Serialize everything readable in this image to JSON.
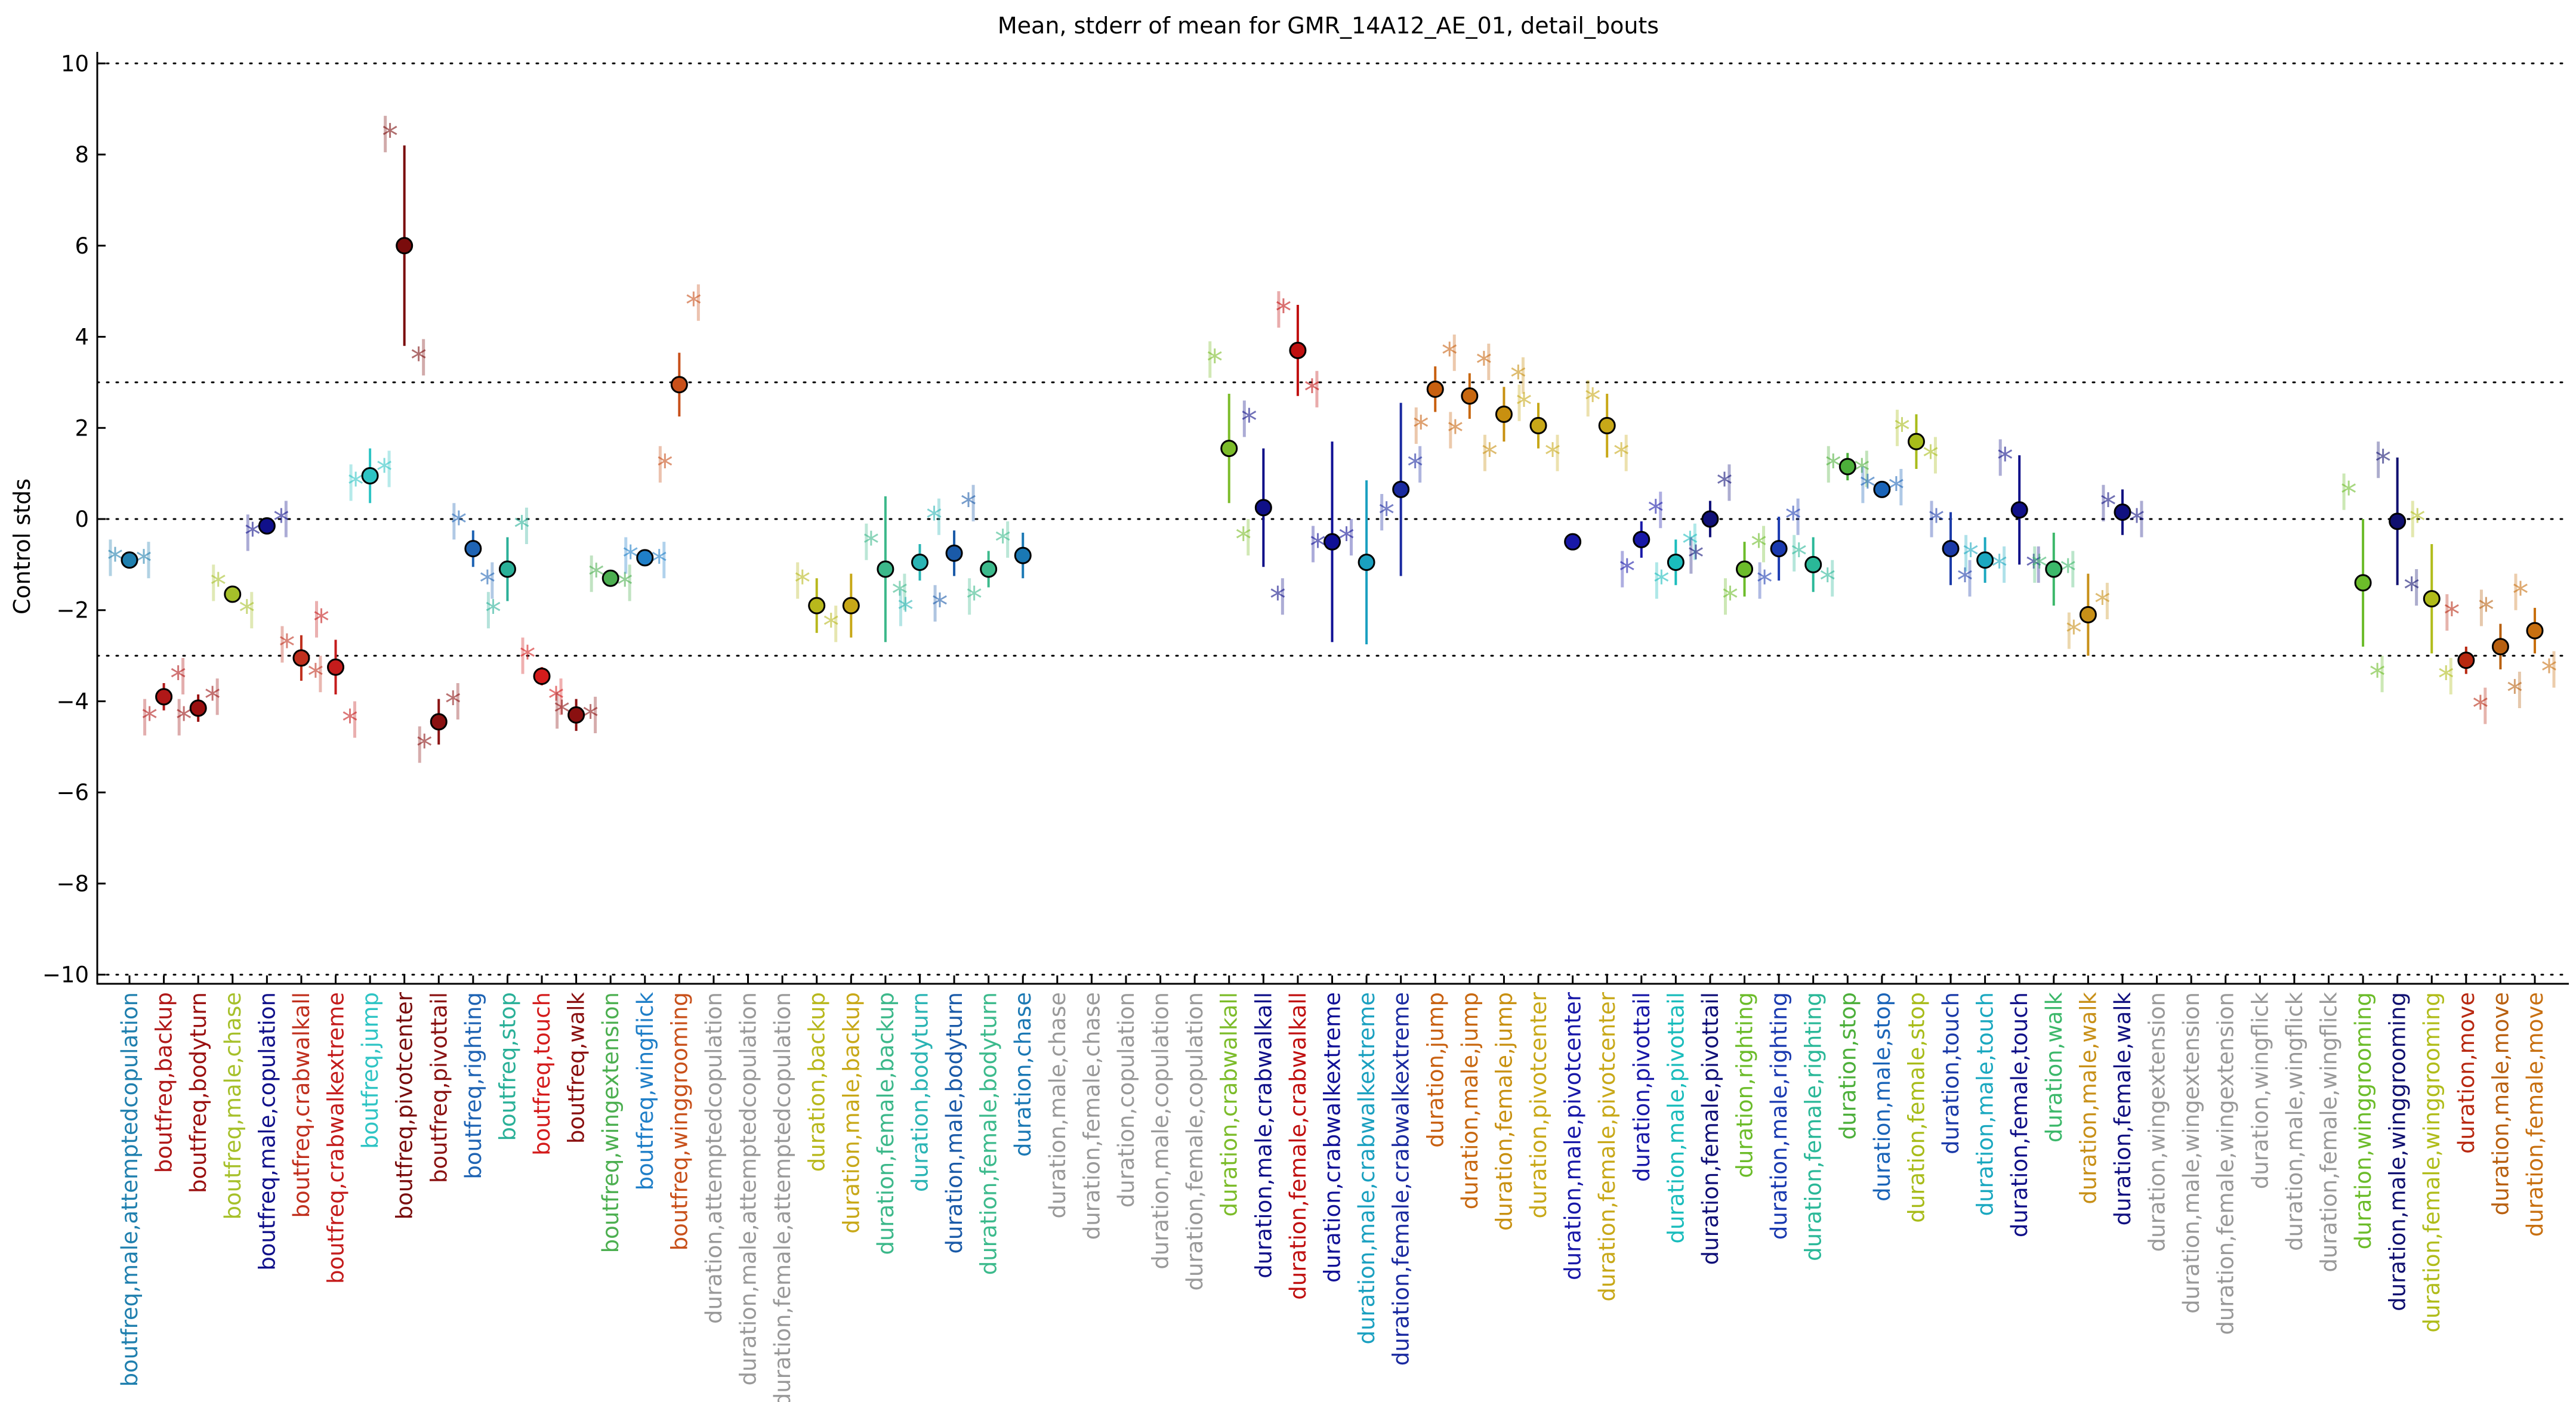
{
  "chart_data": {
    "type": "scatter",
    "title": "Mean, stderr of mean for GMR_14A12_AE_01, detail_bouts",
    "xlabel": "",
    "ylabel": "Control stds",
    "ylim": [
      -10.2,
      10.2
    ],
    "yticks": [
      -10,
      -8,
      -6,
      -4,
      -2,
      0,
      2,
      4,
      6,
      8,
      10
    ],
    "reference_lines": [
      -3,
      0,
      3,
      10,
      -10
    ],
    "grid": false,
    "legend": "none",
    "categories": [
      {
        "label": "boutfreq,male,attemptedcopulation",
        "color": "#1f7fae",
        "mean": -0.9,
        "err": 0.1,
        "reps": [
          -0.85,
          -0.9
        ]
      },
      {
        "label": "boutfreq,backup",
        "color": "#b01818",
        "mean": -3.9,
        "err": 0.3,
        "reps": [
          -4.35,
          -3.45
        ]
      },
      {
        "label": "boutfreq,bodyturn",
        "color": "#9a1010",
        "mean": -4.15,
        "err": 0.3,
        "reps": [
          -4.35,
          -3.9
        ]
      },
      {
        "label": "boutfreq,male,chase",
        "color": "#a6c02a",
        "mean": -1.65,
        "err": 0.15,
        "reps": [
          -1.4,
          -2.0
        ]
      },
      {
        "label": "boutfreq,male,copulation",
        "color": "#10108a",
        "mean": -0.15,
        "err": 0.15,
        "reps": [
          -0.3,
          0.0
        ]
      },
      {
        "label": "boutfreq,crabwalkall",
        "color": "#c0301e",
        "mean": -3.05,
        "err": 0.5,
        "reps": [
          -2.75,
          -3.4
        ]
      },
      {
        "label": "boutfreq,crabwalkextreme",
        "color": "#c41c1c",
        "mean": -3.25,
        "err": 0.6,
        "reps": [
          -2.2,
          -4.4
        ]
      },
      {
        "label": "boutfreq,jump",
        "color": "#2ec4c4",
        "mean": 0.95,
        "err": 0.6,
        "reps": [
          0.8,
          1.1
        ]
      },
      {
        "label": "boutfreq,pivotcenter",
        "color": "#7a0c0c",
        "mean": 6.0,
        "err": 2.2,
        "reps": [
          8.45,
          3.55
        ]
      },
      {
        "label": "boutfreq,pivottail",
        "color": "#8a1212",
        "mean": -4.45,
        "err": 0.5,
        "reps": [
          -4.95,
          -4.0
        ]
      },
      {
        "label": "boutfreq,righting",
        "color": "#1f64b4",
        "mean": -0.65,
        "err": 0.4,
        "reps": [
          -0.05,
          -1.35
        ]
      },
      {
        "label": "boutfreq,stop",
        "color": "#2ab098",
        "mean": -1.1,
        "err": 0.7,
        "reps": [
          -2.0,
          -0.15
        ]
      },
      {
        "label": "boutfreq,touch",
        "color": "#d41c1c",
        "mean": -3.45,
        "err": 0.2,
        "reps": [
          -3.0,
          -3.9
        ]
      },
      {
        "label": "boutfreq,walk",
        "color": "#8a1010",
        "mean": -4.3,
        "err": 0.35,
        "reps": [
          -4.2,
          -4.3
        ]
      },
      {
        "label": "boutfreq,wingextension",
        "color": "#4caf50",
        "mean": -1.3,
        "err": 0.1,
        "reps": [
          -1.2,
          -1.4
        ]
      },
      {
        "label": "boutfreq,wingflick",
        "color": "#1f7fc8",
        "mean": -0.85,
        "err": 0.1,
        "reps": [
          -0.8,
          -0.9
        ]
      },
      {
        "label": "boutfreq,winggrooming",
        "color": "#c8501a",
        "mean": 2.95,
        "err": 0.7,
        "reps": [
          1.2,
          4.75
        ]
      },
      {
        "label": "duration,attemptedcopulation",
        "color": "#999999",
        "mean": null,
        "err": null,
        "reps": []
      },
      {
        "label": "duration,male,attemptedcopulation",
        "color": "#999999",
        "mean": null,
        "err": null,
        "reps": []
      },
      {
        "label": "duration,female,attemptedcopulation",
        "color": "#999999",
        "mean": null,
        "err": null,
        "reps": []
      },
      {
        "label": "duration,backup",
        "color": "#b8b81c",
        "mean": -1.9,
        "err": 0.6,
        "reps": [
          -1.35,
          -2.3
        ]
      },
      {
        "label": "duration,male,backup",
        "color": "#c8a818",
        "mean": -1.9,
        "err": 0.7,
        "reps": []
      },
      {
        "label": "duration,female,backup",
        "color": "#3cb88a",
        "mean": -1.1,
        "err": 1.6,
        "reps": [
          -0.5,
          -1.6
        ]
      },
      {
        "label": "duration,bodyturn",
        "color": "#2ab4b4",
        "mean": -0.95,
        "err": 0.4,
        "reps": [
          -1.95,
          0.05
        ]
      },
      {
        "label": "duration,male,bodyturn",
        "color": "#1a5aa8",
        "mean": -0.75,
        "err": 0.5,
        "reps": [
          -1.85,
          0.35
        ]
      },
      {
        "label": "duration,female,bodyturn",
        "color": "#3cba8c",
        "mean": -1.1,
        "err": 0.4,
        "reps": [
          -1.7,
          -0.45
        ]
      },
      {
        "label": "duration,chase",
        "color": "#1a78b4",
        "mean": -0.8,
        "err": 0.5,
        "reps": []
      },
      {
        "label": "duration,male,chase",
        "color": "#999999",
        "mean": null,
        "err": null,
        "reps": []
      },
      {
        "label": "duration,female,chase",
        "color": "#999999",
        "mean": null,
        "err": null,
        "reps": []
      },
      {
        "label": "duration,copulation",
        "color": "#999999",
        "mean": null,
        "err": null,
        "reps": []
      },
      {
        "label": "duration,male,copulation",
        "color": "#999999",
        "mean": null,
        "err": null,
        "reps": []
      },
      {
        "label": "duration,female,copulation",
        "color": "#999999",
        "mean": null,
        "err": null,
        "reps": []
      },
      {
        "label": "duration,crabwalkall",
        "color": "#7cbc2a",
        "mean": 1.55,
        "err": 1.2,
        "reps": [
          3.5,
          -0.4
        ]
      },
      {
        "label": "duration,male,crabwalkall",
        "color": "#101088",
        "mean": 0.25,
        "err": 1.3,
        "reps": [
          2.2,
          -1.7
        ]
      },
      {
        "label": "duration,female,crabwalkall",
        "color": "#c01010",
        "mean": 3.7,
        "err": 1.0,
        "reps": [
          4.6,
          2.85
        ]
      },
      {
        "label": "duration,crabwalkextreme",
        "color": "#101096",
        "mean": -0.5,
        "err": 2.2,
        "reps": [
          -0.55,
          -0.4
        ]
      },
      {
        "label": "duration,male,crabwalkextreme",
        "color": "#1aa0c0",
        "mean": -0.95,
        "err": 1.8,
        "reps": []
      },
      {
        "label": "duration,female,crabwalkextreme",
        "color": "#1a2aa0",
        "mean": 0.65,
        "err": 1.9,
        "reps": [
          0.15,
          1.2
        ]
      },
      {
        "label": "duration,jump",
        "color": "#c86010",
        "mean": 2.85,
        "err": 0.5,
        "reps": [
          2.05,
          3.65
        ]
      },
      {
        "label": "duration,male,jump",
        "color": "#c86810",
        "mean": 2.7,
        "err": 0.5,
        "reps": [
          1.95,
          3.45
        ]
      },
      {
        "label": "duration,female,jump",
        "color": "#c89010",
        "mean": 2.3,
        "err": 0.6,
        "reps": [
          1.45,
          3.15
        ]
      },
      {
        "label": "duration,pivotcenter",
        "color": "#c8a818",
        "mean": 2.05,
        "err": 0.5,
        "reps": [
          2.55,
          1.45
        ]
      },
      {
        "label": "duration,male,pivotcenter",
        "color": "#1818a8",
        "mean": -0.5,
        "err": 0.1,
        "reps": []
      },
      {
        "label": "duration,female,pivotcenter",
        "color": "#c8a818",
        "mean": 2.05,
        "err": 0.7,
        "reps": [
          2.65,
          1.45
        ]
      },
      {
        "label": "duration,pivottail",
        "color": "#1818a8",
        "mean": -0.45,
        "err": 0.4,
        "reps": [
          -1.1,
          0.2
        ]
      },
      {
        "label": "duration,male,pivottail",
        "color": "#1abcbc",
        "mean": -0.95,
        "err": 0.5,
        "reps": [
          -1.35,
          -0.5
        ]
      },
      {
        "label": "duration,female,pivottail",
        "color": "#101078",
        "mean": 0.0,
        "err": 0.4,
        "reps": [
          -0.8,
          0.8
        ]
      },
      {
        "label": "duration,righting",
        "color": "#6cbc2a",
        "mean": -1.1,
        "err": 0.6,
        "reps": [
          -1.7,
          -0.55
        ]
      },
      {
        "label": "duration,male,righting",
        "color": "#1a3ab0",
        "mean": -0.65,
        "err": 0.7,
        "reps": [
          -1.35,
          0.05
        ]
      },
      {
        "label": "duration,female,righting",
        "color": "#2ab898",
        "mean": -1.0,
        "err": 0.6,
        "reps": [
          -0.75,
          -1.3
        ]
      },
      {
        "label": "duration,stop",
        "color": "#4caf3a",
        "mean": 1.15,
        "err": 0.3,
        "reps": [
          1.2,
          1.1
        ]
      },
      {
        "label": "duration,male,stop",
        "color": "#1a64b8",
        "mean": 0.65,
        "err": 0.15,
        "reps": [
          0.75,
          0.7
        ]
      },
      {
        "label": "duration,female,stop",
        "color": "#a8bc1a",
        "mean": 1.7,
        "err": 0.6,
        "reps": [
          2.0,
          1.4
        ]
      },
      {
        "label": "duration,touch",
        "color": "#1a3aa8",
        "mean": -0.65,
        "err": 0.8,
        "reps": [
          0.0,
          -1.3
        ]
      },
      {
        "label": "duration,male,touch",
        "color": "#1aa8c0",
        "mean": -0.9,
        "err": 0.5,
        "reps": [
          -0.75,
          -1.0
        ]
      },
      {
        "label": "duration,female,touch",
        "color": "#101088",
        "mean": 0.2,
        "err": 1.2,
        "reps": [
          1.35,
          -1.0
        ]
      },
      {
        "label": "duration,walk",
        "color": "#3cb86a",
        "mean": -1.1,
        "err": 0.8,
        "reps": [
          -1.0,
          -1.1
        ]
      },
      {
        "label": "duration,male,walk",
        "color": "#c89018",
        "mean": -2.1,
        "err": 0.9,
        "reps": [
          -2.45,
          -1.8
        ]
      },
      {
        "label": "duration,female,walk",
        "color": "#101080",
        "mean": 0.15,
        "err": 0.5,
        "reps": [
          0.35,
          0.0
        ]
      },
      {
        "label": "duration,wingextension",
        "color": "#999999",
        "mean": null,
        "err": null,
        "reps": []
      },
      {
        "label": "duration,male,wingextension",
        "color": "#999999",
        "mean": null,
        "err": null,
        "reps": []
      },
      {
        "label": "duration,female,wingextension",
        "color": "#999999",
        "mean": null,
        "err": null,
        "reps": []
      },
      {
        "label": "duration,wingflick",
        "color": "#999999",
        "mean": null,
        "err": null,
        "reps": []
      },
      {
        "label": "duration,male,wingflick",
        "color": "#999999",
        "mean": null,
        "err": null,
        "reps": []
      },
      {
        "label": "duration,female,wingflick",
        "color": "#999999",
        "mean": null,
        "err": null,
        "reps": []
      },
      {
        "label": "duration,winggrooming",
        "color": "#6cbc2a",
        "mean": -1.4,
        "err": 1.4,
        "reps": [
          0.6,
          -3.4
        ]
      },
      {
        "label": "duration,male,winggrooming",
        "color": "#101070",
        "mean": -0.05,
        "err": 1.4,
        "reps": [
          1.3,
          -1.5
        ]
      },
      {
        "label": "duration,female,winggrooming",
        "color": "#b0bc1a",
        "mean": -1.75,
        "err": 1.2,
        "reps": [
          0.0,
          -3.45
        ]
      },
      {
        "label": "duration,move",
        "color": "#b82810",
        "mean": -3.1,
        "err": 0.3,
        "reps": [
          -2.05,
          -4.1
        ]
      },
      {
        "label": "duration,male,move",
        "color": "#b86010",
        "mean": -2.8,
        "err": 0.5,
        "reps": [
          -1.95,
          -3.75
        ]
      },
      {
        "label": "duration,female,move",
        "color": "#c87010",
        "mean": -2.45,
        "err": 0.5,
        "reps": [
          -1.6,
          -3.3
        ]
      }
    ]
  }
}
